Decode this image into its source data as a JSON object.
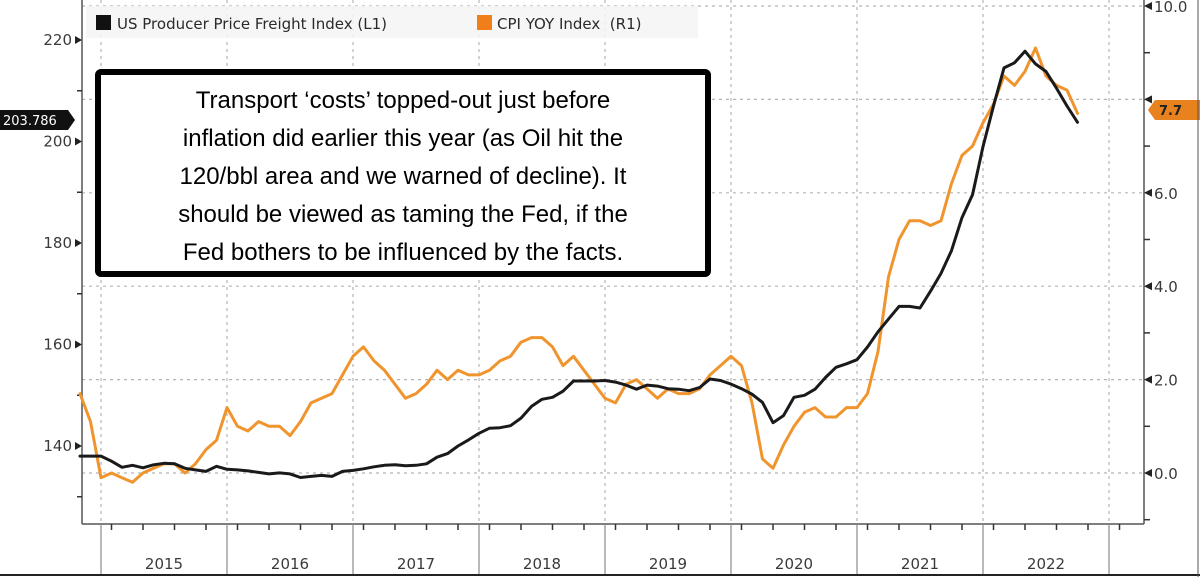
{
  "chart_data": {
    "type": "line",
    "title": "",
    "xlabel": "",
    "legend_position": "top-left",
    "grid": true,
    "x_start": "2014-11",
    "x_frequency": "monthly",
    "x_tick_labels": [
      "2015",
      "2016",
      "2017",
      "2018",
      "2019",
      "2020",
      "2021",
      "2022"
    ],
    "left_axis": {
      "range": [
        120,
        232
      ],
      "ticks": [
        140,
        160,
        180,
        200,
        220
      ],
      "tick_labels": [
        "140",
        "160",
        "180",
        "200",
        "220"
      ],
      "last_value_label": "203.786"
    },
    "right_axis": {
      "range": [
        -1.1,
        10.1
      ],
      "ticks": [
        0,
        2,
        4,
        6,
        8,
        10
      ],
      "tick_labels": [
        "0.0",
        "2.0",
        "4.0",
        "6.0",
        "8.0",
        "10.0"
      ],
      "last_value_label": "7.7"
    },
    "series": [
      {
        "name": "US Producer Price Freight Index",
        "legend": "US Producer Price Freight Index (L1)",
        "axis": "left",
        "color": "#1a1a1a",
        "values": [
          138.0,
          138.0,
          138.0,
          137.0,
          135.8,
          136.2,
          135.7,
          136.3,
          136.6,
          136.5,
          135.6,
          135.3,
          135.0,
          136.0,
          135.4,
          135.3,
          135.1,
          134.8,
          134.5,
          134.7,
          134.5,
          133.8,
          134.0,
          134.2,
          134.0,
          135.0,
          135.2,
          135.5,
          135.9,
          136.2,
          136.3,
          136.1,
          136.2,
          136.5,
          137.8,
          138.5,
          140.0,
          141.2,
          142.5,
          143.5,
          143.6,
          144.0,
          145.5,
          147.8,
          149.2,
          149.6,
          150.8,
          152.8,
          152.8,
          152.8,
          152.9,
          152.6,
          152.0,
          151.2,
          152.0,
          151.8,
          151.3,
          151.2,
          150.9,
          151.5,
          153.2,
          152.9,
          152.2,
          151.3,
          150.2,
          148.6,
          144.6,
          146.0,
          149.6,
          150.0,
          151.2,
          153.5,
          155.5,
          156.2,
          157.0,
          159.5,
          162.5,
          165.0,
          167.5,
          167.5,
          167.2,
          170.5,
          174.0,
          178.5,
          185.0,
          189.5,
          199.0,
          207.0,
          214.5,
          215.5,
          217.8,
          215.3,
          213.8,
          210.5,
          207.0,
          203.786
        ]
      },
      {
        "name": "CPI YOY Index",
        "legend": "CPI YOY Index  (R1)",
        "axis": "right",
        "color": "#f0942e",
        "values": [
          1.7,
          1.1,
          -0.1,
          0.0,
          -0.1,
          -0.2,
          0.0,
          0.1,
          0.2,
          0.2,
          0.0,
          0.2,
          0.5,
          0.7,
          1.4,
          1.0,
          0.9,
          1.1,
          1.0,
          1.0,
          0.8,
          1.1,
          1.5,
          1.6,
          1.7,
          2.1,
          2.5,
          2.7,
          2.4,
          2.2,
          1.9,
          1.6,
          1.7,
          1.9,
          2.2,
          2.0,
          2.2,
          2.1,
          2.1,
          2.2,
          2.4,
          2.5,
          2.8,
          2.9,
          2.9,
          2.7,
          2.3,
          2.5,
          2.2,
          1.9,
          1.6,
          1.5,
          1.9,
          2.0,
          1.8,
          1.6,
          1.8,
          1.7,
          1.7,
          1.8,
          2.1,
          2.3,
          2.5,
          2.3,
          1.5,
          0.3,
          0.1,
          0.6,
          1.0,
          1.3,
          1.4,
          1.2,
          1.2,
          1.4,
          1.4,
          1.7,
          2.6,
          4.2,
          5.0,
          5.4,
          5.4,
          5.3,
          5.4,
          6.2,
          6.8,
          7.0,
          7.5,
          7.9,
          8.5,
          8.3,
          8.6,
          9.1,
          8.5,
          8.3,
          8.2,
          7.7
        ]
      }
    ],
    "annotation": {
      "lines": [
        "Transport ‘costs’ topped-out just before",
        "inflation did earlier this year (as Oil hit the",
        "120/bbl area and we warned of decline). It",
        "should be viewed as taming the Fed, if the",
        "Fed bothers to be influenced by the facts."
      ]
    }
  }
}
